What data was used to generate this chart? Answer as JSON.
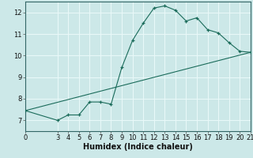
{
  "xlabel": "Humidex (Indice chaleur)",
  "background_color": "#cce8e8",
  "line_color": "#1a6b5a",
  "grid_color": "#e8f8f8",
  "xlim": [
    0,
    21
  ],
  "ylim": [
    6.5,
    12.5
  ],
  "yticks": [
    7,
    8,
    9,
    10,
    11,
    12
  ],
  "xticks": [
    0,
    3,
    4,
    5,
    6,
    7,
    8,
    9,
    10,
    11,
    12,
    13,
    14,
    15,
    16,
    17,
    18,
    19,
    20,
    21
  ],
  "curve_x": [
    0,
    3,
    4,
    5,
    6,
    7,
    8,
    9,
    10,
    11,
    12,
    13,
    14,
    15,
    16,
    17,
    18,
    19,
    20,
    21
  ],
  "curve_y": [
    7.45,
    7.0,
    7.25,
    7.25,
    7.85,
    7.85,
    7.75,
    9.45,
    10.7,
    11.5,
    12.2,
    12.3,
    12.1,
    11.6,
    11.75,
    11.2,
    11.05,
    10.6,
    10.2,
    10.15
  ],
  "line_x": [
    0,
    21
  ],
  "line_y": [
    7.45,
    10.15
  ],
  "xlabel_fontsize": 7,
  "tick_fontsize": 6
}
